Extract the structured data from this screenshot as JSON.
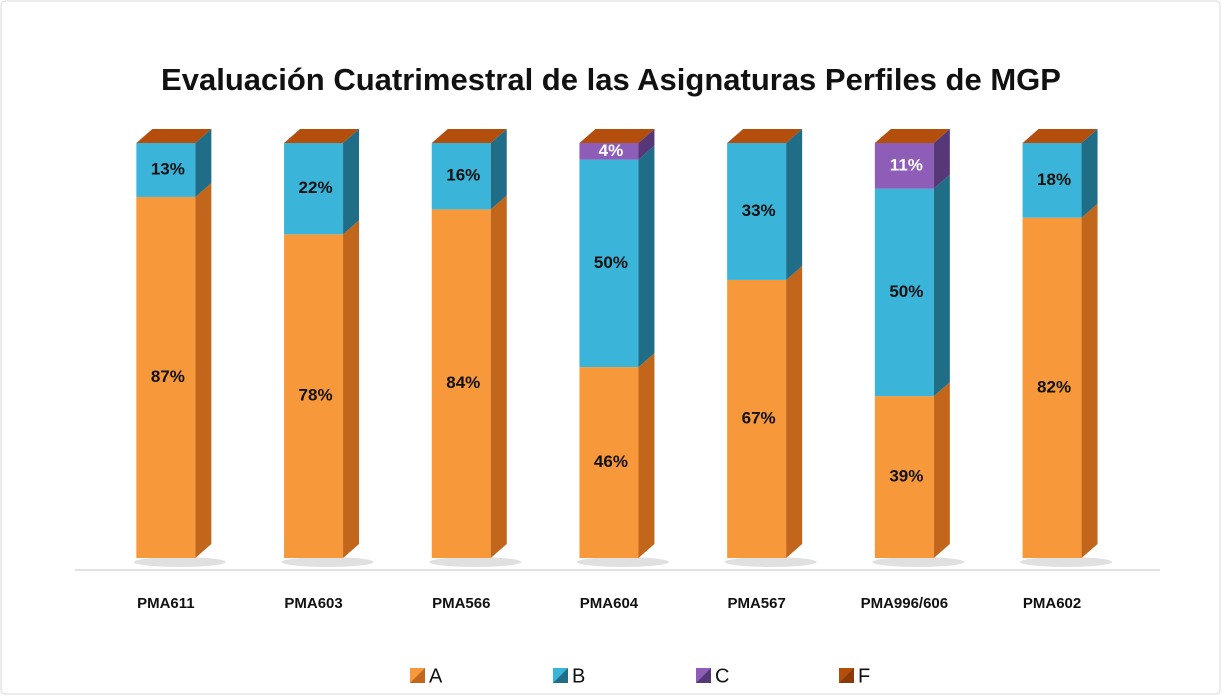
{
  "chart_data": {
    "type": "bar3d_stacked",
    "title": "Evaluación Cuatrimestral de las Asignaturas Perfiles de MGP",
    "categories": [
      "PMA611",
      "PMA603",
      "PMA566",
      "PMA604",
      "PMA567",
      "PMA996/606",
      "PMA602"
    ],
    "ylim": [
      0,
      100
    ],
    "legend": "bottom",
    "series": [
      {
        "name": "A",
        "color": "#f7993a",
        "side": "#c2661c",
        "label_color": "#111111",
        "values": [
          87,
          78,
          84,
          46,
          67,
          39,
          82
        ],
        "value_labels": [
          "87%",
          "78%",
          "84%",
          "46%",
          "67%",
          "39%",
          "82%"
        ]
      },
      {
        "name": "B",
        "color": "#3ab5d9",
        "side": "#1f6d87",
        "label_color": "#111111",
        "values": [
          13,
          22,
          16,
          50,
          33,
          50,
          18
        ],
        "value_labels": [
          "13%",
          "22%",
          "16%",
          "50%",
          "33%",
          "50%",
          "18%"
        ]
      },
      {
        "name": "C",
        "color": "#8d5db8",
        "side": "#563879",
        "label_color": "#ffffff",
        "values": [
          0,
          0,
          0,
          4,
          0,
          11,
          0
        ],
        "value_labels": [
          null,
          null,
          null,
          "4%",
          null,
          "11%",
          null
        ]
      },
      {
        "name": "F",
        "color": "#b44e0c",
        "side": "#8a3a06",
        "label_color": "#111111",
        "values": [
          0,
          0,
          0,
          0,
          0,
          0,
          0
        ],
        "value_labels": [
          null,
          null,
          null,
          null,
          null,
          null,
          null
        ]
      }
    ]
  }
}
